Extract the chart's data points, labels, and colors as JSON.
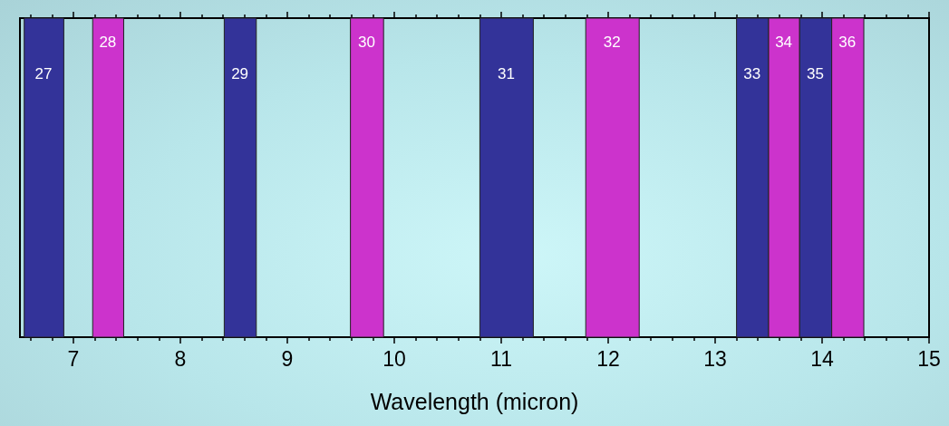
{
  "chart_data": {
    "type": "bar",
    "orientation": "horizontal",
    "xlabel": "Wavelength (micron)",
    "xlim": [
      6.5,
      15
    ],
    "xticks": [
      {
        "value": 6.6,
        "label": null
      },
      {
        "value": 6.8,
        "label": null
      },
      7,
      {
        "value": 7.2,
        "label": null
      },
      {
        "value": 7.4,
        "label": null
      },
      {
        "value": 7.6,
        "label": null
      },
      {
        "value": 7.8,
        "label": null
      },
      8,
      {
        "value": 8.2,
        "label": null
      },
      {
        "value": 8.4,
        "label": null
      },
      {
        "value": 8.6,
        "label": null
      },
      {
        "value": 8.8,
        "label": null
      },
      9,
      {
        "value": 9.2,
        "label": null
      },
      {
        "value": 9.4,
        "label": null
      },
      {
        "value": 9.6,
        "label": null
      },
      {
        "value": 9.8,
        "label": null
      },
      10,
      {
        "value": 10.2,
        "label": null
      },
      {
        "value": 10.4,
        "label": null
      },
      {
        "value": 10.6,
        "label": null
      },
      {
        "value": 10.8,
        "label": null
      },
      11,
      {
        "value": 11.2,
        "label": null
      },
      {
        "value": 11.4,
        "label": null
      },
      {
        "value": 11.6,
        "label": null
      },
      {
        "value": 11.8,
        "label": null
      },
      12,
      {
        "value": 12.2,
        "label": null
      },
      {
        "value": 12.4,
        "label": null
      },
      {
        "value": 12.6,
        "label": null
      },
      {
        "value": 12.8,
        "label": null
      },
      13,
      {
        "value": 13.2,
        "label": null
      },
      {
        "value": 13.4,
        "label": null
      },
      {
        "value": 13.6,
        "label": null
      },
      {
        "value": 13.8,
        "label": null
      },
      14,
      {
        "value": 14.2,
        "label": null
      },
      {
        "value": 14.4,
        "label": null
      },
      {
        "value": 14.6,
        "label": null
      },
      {
        "value": 14.8,
        "label": null
      },
      15
    ],
    "categories": [
      null
    ],
    "series": [
      {
        "name": "27",
        "color": "#333399",
        "base": [
          6.54
        ],
        "values": [
          0.37
        ]
      },
      {
        "name": "28",
        "color": "#cc33cc",
        "base": [
          7.18
        ],
        "values": [
          0.29
        ]
      },
      {
        "name": "29",
        "color": "#333399",
        "base": [
          8.41
        ],
        "values": [
          0.3
        ]
      },
      {
        "name": "30",
        "color": "#cc33cc",
        "base": [
          9.59
        ],
        "values": [
          0.31
        ]
      },
      {
        "name": "31",
        "color": "#333399",
        "base": [
          10.8
        ],
        "values": [
          0.5
        ]
      },
      {
        "name": "32",
        "color": "#cc33cc",
        "base": [
          11.79
        ],
        "values": [
          0.5
        ]
      },
      {
        "name": "33",
        "color": "#333399",
        "base": [
          13.2
        ],
        "values": [
          0.3
        ]
      },
      {
        "name": "34",
        "color": "#cc33cc",
        "base": [
          13.5
        ],
        "values": [
          0.29
        ]
      },
      {
        "name": "35",
        "color": "#333399",
        "base": [
          13.79
        ],
        "values": [
          0.3
        ]
      },
      {
        "name": "36",
        "color": "#cc33cc",
        "base": [
          14.09
        ],
        "values": [
          0.3
        ]
      }
    ]
  }
}
